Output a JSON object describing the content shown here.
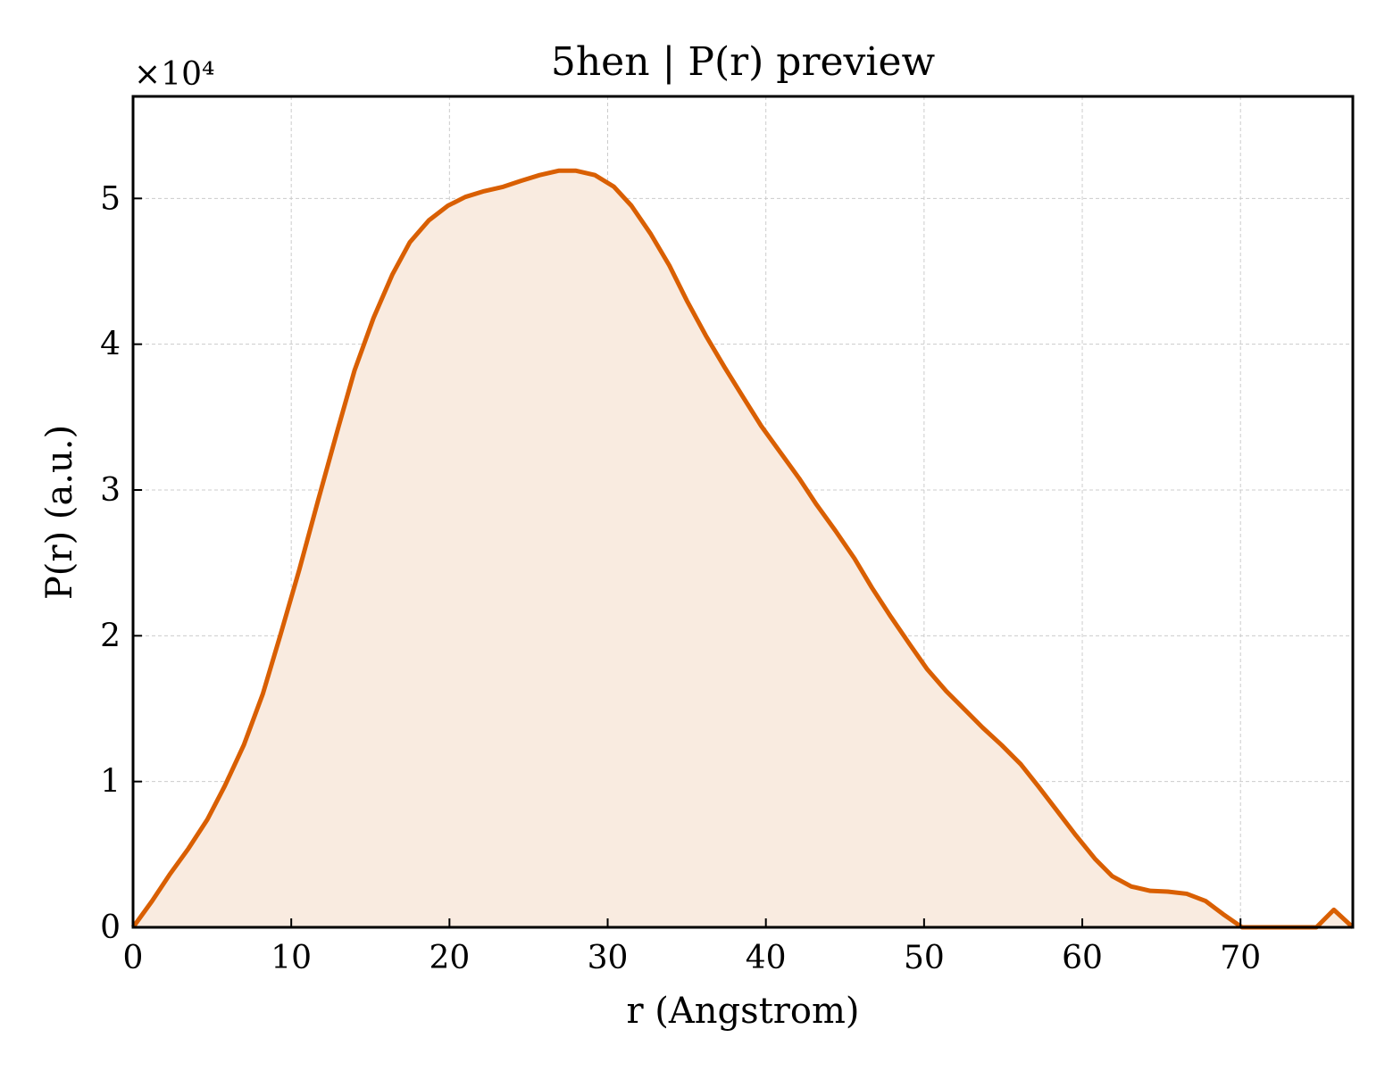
{
  "chart_data": {
    "type": "area",
    "title": "5hen | P(r) preview",
    "xlabel": "r (Angstrom)",
    "ylabel": "P(r) (a.u.)",
    "y_multiplier_label": "×10⁴",
    "xlim": [
      0,
      77.1
    ],
    "ylim": [
      0,
      5.7
    ],
    "y_scale_factor": 10000,
    "xticks": [
      "0",
      "10",
      "20",
      "30",
      "40",
      "50",
      "60",
      "70"
    ],
    "yticks": [
      "0",
      "1",
      "2",
      "3",
      "4",
      "5"
    ],
    "grid": true,
    "line_color": "#d95f02",
    "fill_color": "#f9ebe0",
    "series": [
      {
        "x": [
          0,
          1.2,
          2.3,
          3.5,
          4.7,
          5.8,
          7.0,
          8.2,
          9.3,
          10.5,
          11.7,
          12.9,
          14.0,
          15.2,
          16.4,
          17.5,
          18.7,
          19.9,
          21.0,
          22.2,
          23.4,
          24.5,
          25.7,
          26.9,
          28.0,
          29.2,
          30.4,
          31.5,
          32.7,
          33.9,
          35.0,
          36.2,
          37.4,
          38.6,
          39.7,
          40.9,
          42.1,
          43.2,
          44.4,
          45.6,
          46.7,
          47.9,
          49.1,
          50.2,
          51.4,
          52.6,
          53.7,
          54.9,
          56.1,
          57.2,
          58.4,
          59.6,
          60.8,
          61.9,
          63.1,
          64.3,
          65.4,
          66.6,
          67.8,
          68.9,
          70.1,
          71.3,
          72.4,
          73.6,
          74.8,
          75.9,
          77.1
        ],
        "y": [
          0,
          0.18,
          0.36,
          0.54,
          0.74,
          0.97,
          1.25,
          1.6,
          2.0,
          2.45,
          2.93,
          3.4,
          3.82,
          4.18,
          4.48,
          4.7,
          4.85,
          4.95,
          5.01,
          5.05,
          5.08,
          5.12,
          5.16,
          5.19,
          5.19,
          5.16,
          5.08,
          4.95,
          4.76,
          4.54,
          4.3,
          4.06,
          3.84,
          3.63,
          3.44,
          3.26,
          3.08,
          2.9,
          2.72,
          2.53,
          2.33,
          2.13,
          1.94,
          1.77,
          1.62,
          1.49,
          1.37,
          1.25,
          1.12,
          0.97,
          0.8,
          0.63,
          0.47,
          0.35,
          0.28,
          0.25,
          0.245,
          0.23,
          0.18,
          0.09,
          0.0,
          0.0,
          0.0,
          0.0,
          0.0,
          0.12,
          0.0
        ]
      }
    ]
  }
}
